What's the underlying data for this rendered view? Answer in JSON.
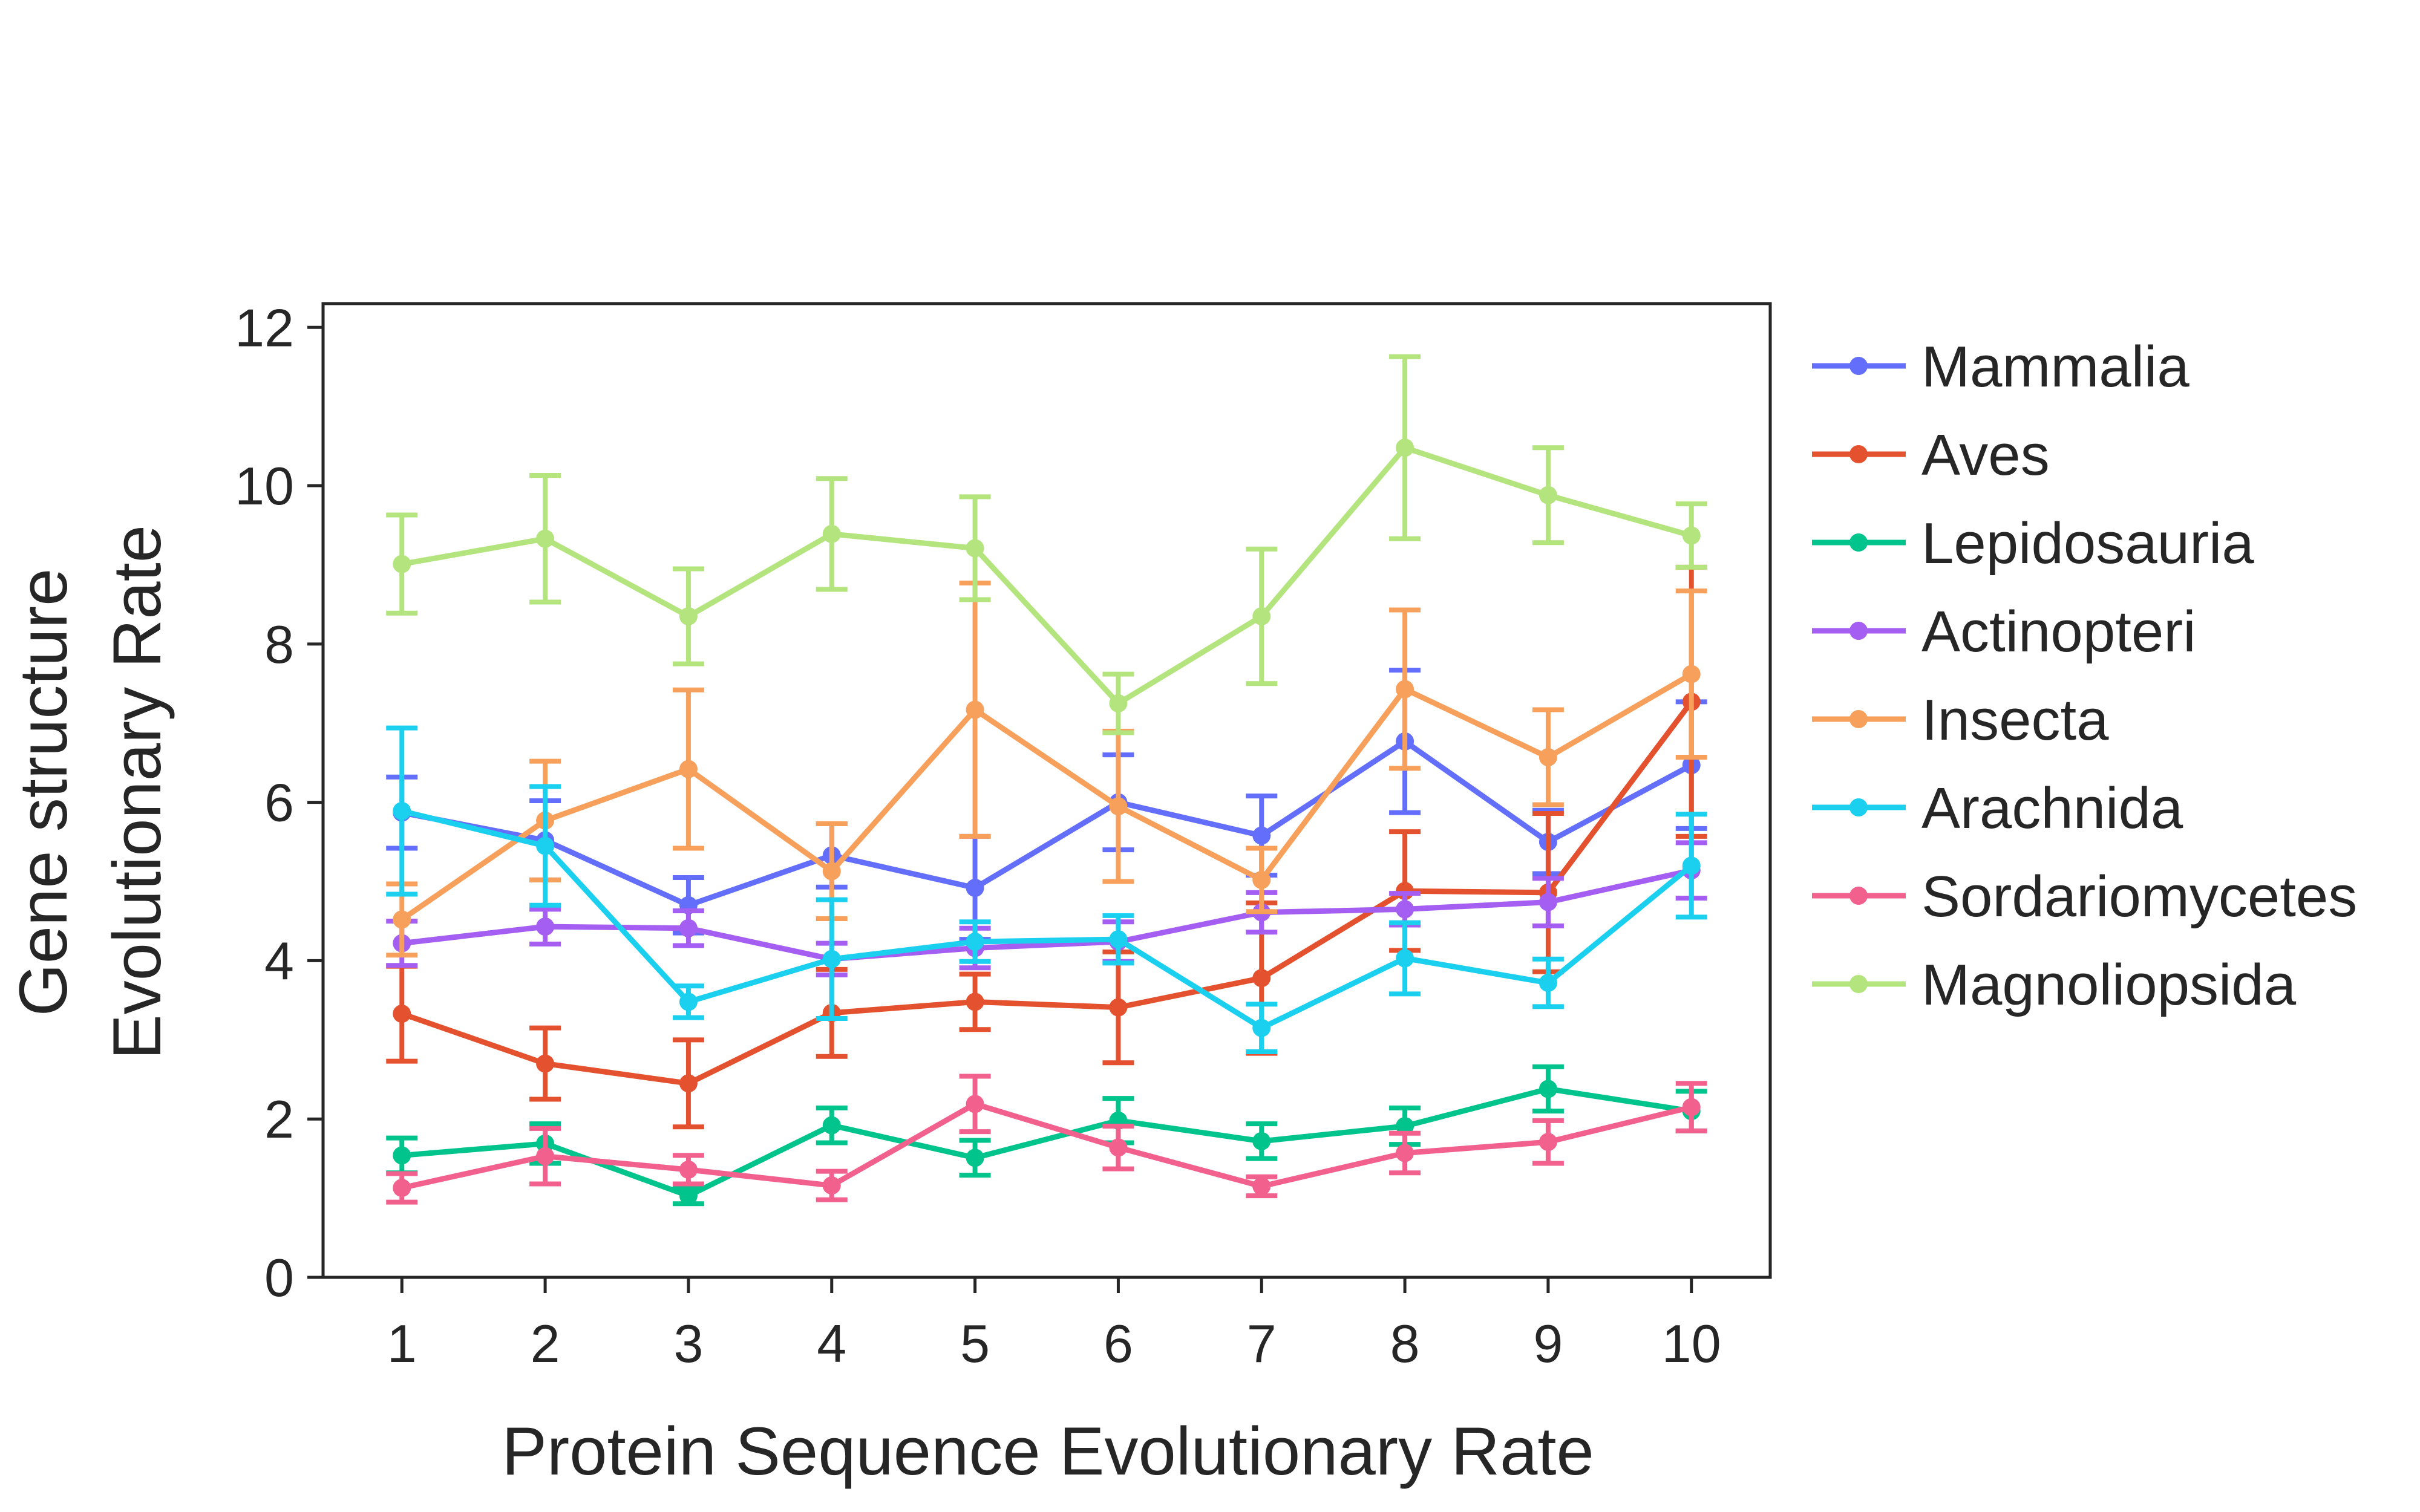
{
  "chart_data": {
    "type": "line",
    "title": "",
    "xlabel": "Protein Sequence Evolutionary Rate",
    "ylabel_lines": [
      "Gene structure",
      "Evolutionary Rate"
    ],
    "x": [
      1,
      2,
      3,
      4,
      5,
      6,
      7,
      8,
      9,
      10
    ],
    "xlim": [
      0.45,
      10.55
    ],
    "ylim": [
      0,
      12.3
    ],
    "yticks": [
      0,
      2,
      4,
      6,
      8,
      10,
      12
    ],
    "grid": false,
    "legend_position": "right",
    "error_bars": true,
    "series": [
      {
        "name": "Mammalia",
        "color": "#636efa",
        "values": [
          5.87,
          5.52,
          4.7,
          5.33,
          4.92,
          6.0,
          5.58,
          6.77,
          5.5,
          6.47
        ],
        "errors": [
          0.45,
          0.5,
          0.35,
          0.4,
          0.65,
          0.6,
          0.5,
          0.9,
          0.4,
          0.8
        ]
      },
      {
        "name": "Aves",
        "color": "#e4512f",
        "values": [
          3.33,
          2.7,
          2.45,
          3.34,
          3.48,
          3.41,
          3.78,
          4.88,
          4.86,
          7.27
        ],
        "errors": [
          0.6,
          0.45,
          0.55,
          0.55,
          0.35,
          0.7,
          0.95,
          0.75,
          1.0,
          1.7
        ]
      },
      {
        "name": "Lepidosauria",
        "color": "#00c48c",
        "values": [
          1.54,
          1.69,
          1.03,
          1.92,
          1.51,
          1.98,
          1.72,
          1.91,
          2.38,
          2.1
        ],
        "errors": [
          0.22,
          0.25,
          0.1,
          0.22,
          0.22,
          0.28,
          0.22,
          0.23,
          0.28,
          0.25
        ]
      },
      {
        "name": "Actinopteri",
        "color": "#a45ef1",
        "values": [
          4.22,
          4.43,
          4.41,
          4.02,
          4.16,
          4.24,
          4.61,
          4.65,
          4.74,
          5.14
        ],
        "errors": [
          0.28,
          0.22,
          0.22,
          0.2,
          0.25,
          0.25,
          0.25,
          0.2,
          0.3,
          0.35
        ]
      },
      {
        "name": "Insecta",
        "color": "#f7a05c",
        "values": [
          4.52,
          5.77,
          6.42,
          5.13,
          7.17,
          5.95,
          5.02,
          7.43,
          6.57,
          7.62
        ],
        "errors": [
          0.45,
          0.75,
          1.0,
          0.6,
          1.6,
          0.95,
          0.4,
          1.0,
          0.6,
          1.05
        ]
      },
      {
        "name": "Arachnida",
        "color": "#1bd0ef",
        "values": [
          5.89,
          5.45,
          3.48,
          4.02,
          4.24,
          4.27,
          3.15,
          4.03,
          3.72,
          5.2
        ],
        "errors": [
          1.05,
          0.75,
          0.2,
          0.75,
          0.25,
          0.3,
          0.3,
          0.45,
          0.3,
          0.65
        ]
      },
      {
        "name": "Sordariomycetes",
        "color": "#f2618e",
        "values": [
          1.13,
          1.53,
          1.36,
          1.16,
          2.19,
          1.64,
          1.15,
          1.57,
          1.71,
          2.15
        ],
        "errors": [
          0.18,
          0.35,
          0.18,
          0.18,
          0.35,
          0.27,
          0.12,
          0.25,
          0.27,
          0.3
        ]
      },
      {
        "name": "Magnoliopsida",
        "color": "#b3e47d",
        "values": [
          9.01,
          9.33,
          8.35,
          9.39,
          9.21,
          7.25,
          8.35,
          10.48,
          9.88,
          9.37
        ],
        "errors": [
          0.62,
          0.8,
          0.6,
          0.7,
          0.65,
          0.37,
          0.85,
          1.15,
          0.6,
          0.4
        ]
      }
    ]
  }
}
